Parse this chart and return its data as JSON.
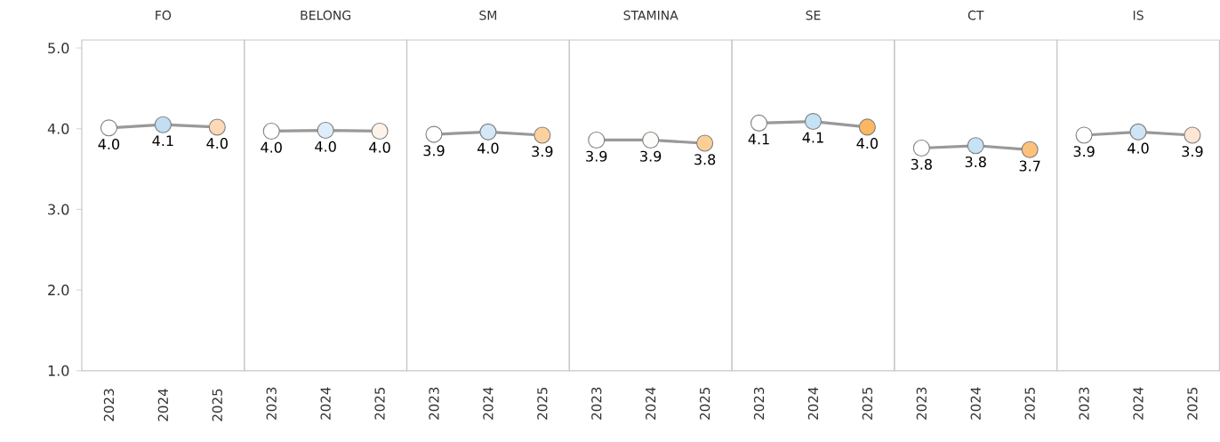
{
  "chart_data": [
    {
      "type": "line",
      "title": "FO",
      "categories": [
        "2023",
        "2024",
        "2025"
      ],
      "values": [
        4.01,
        4.05,
        4.02
      ],
      "value_labels": [
        "4.0",
        "4.1",
        "4.0"
      ],
      "color": "#999999",
      "colors": [
        "#ffffff",
        "#c2def3",
        "#fdd9b8"
      ],
      "marker": "circle",
      "ylim": [
        1,
        5.1
      ],
      "yticks": [
        {
          "value": 1,
          "label": "1.0"
        },
        {
          "value": 2,
          "label": "2.0"
        },
        {
          "value": 3,
          "label": "3.0"
        },
        {
          "value": 4,
          "label": "4.0"
        },
        {
          "value": 5,
          "label": "5.0"
        }
      ]
    },
    {
      "type": "line",
      "title": "BELONG",
      "categories": [
        "2023",
        "2024",
        "2025"
      ],
      "values": [
        3.97,
        3.98,
        3.97
      ],
      "value_labels": [
        "4.0",
        "4.0",
        "4.0"
      ],
      "color": "#999999",
      "colors": [
        "#ffffff",
        "#ddeefa",
        "#fdf3ea"
      ],
      "marker": "circle",
      "ylim": [
        1,
        5.1
      ],
      "tick_labels": "x"
    },
    {
      "type": "line",
      "title": "SM",
      "categories": [
        "2023",
        "2024",
        "2025"
      ],
      "values": [
        3.93,
        3.96,
        3.92
      ],
      "value_labels": [
        "3.9",
        "4.0",
        "3.9"
      ],
      "color": "#999999",
      "colors": [
        "#ffffff",
        "#d4e8f7",
        "#fdd19e"
      ],
      "marker": "circle",
      "ylim": [
        1,
        5.1
      ],
      "tick_labels": "x"
    },
    {
      "type": "line",
      "title": "STAMINA",
      "categories": [
        "2023",
        "2024",
        "2025"
      ],
      "values": [
        3.86,
        3.86,
        3.82
      ],
      "value_labels": [
        "3.9",
        "3.9",
        "3.8"
      ],
      "color": "#999999",
      "colors": [
        "#ffffff",
        "#fdfcfa",
        "#fdcf98"
      ],
      "marker": "circle",
      "ylim": [
        1,
        5.1
      ],
      "tick_labels": "x"
    },
    {
      "type": "line",
      "title": "SE",
      "categories": [
        "2023",
        "2024",
        "2025"
      ],
      "values": [
        4.07,
        4.09,
        4.02
      ],
      "value_labels": [
        "4.1",
        "4.1",
        "4.0"
      ],
      "color": "#999999",
      "colors": [
        "#ffffff",
        "#c6e2f5",
        "#fbb761"
      ],
      "marker": "circle",
      "ylim": [
        1,
        5.1
      ],
      "tick_labels": "x"
    },
    {
      "type": "line",
      "title": "CT",
      "categories": [
        "2023",
        "2024",
        "2025"
      ],
      "values": [
        3.76,
        3.79,
        3.74
      ],
      "value_labels": [
        "3.8",
        "3.8",
        "3.7"
      ],
      "color": "#999999",
      "colors": [
        "#ffffff",
        "#c6e2f5",
        "#fcc27a"
      ],
      "marker": "circle",
      "ylim": [
        1,
        5.1
      ],
      "tick_labels": "x"
    },
    {
      "type": "line",
      "title": "IS",
      "categories": [
        "2023",
        "2024",
        "2025"
      ],
      "values": [
        3.92,
        3.96,
        3.92
      ],
      "value_labels": [
        "3.9",
        "4.0",
        "3.9"
      ],
      "color": "#999999",
      "colors": [
        "#ffffff",
        "#cfe5f5",
        "#fde6d3"
      ],
      "marker": "circle",
      "ylim": [
        1,
        5.1
      ],
      "tick_labels": "x"
    }
  ]
}
